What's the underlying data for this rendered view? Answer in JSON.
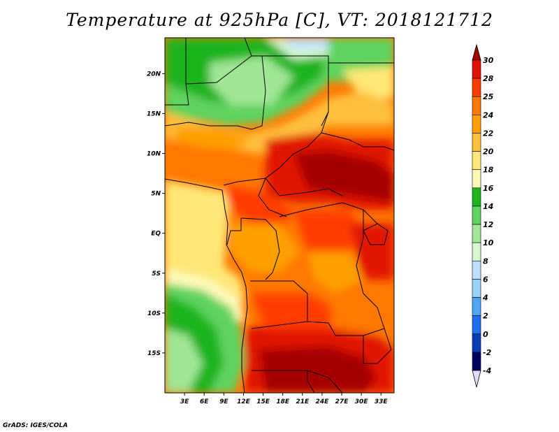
{
  "title": "Temperature at 925hPa [C], VT: 2018121712",
  "credit": "GrADS: IGES/COLA",
  "map": {
    "lat_labels": [
      "20N",
      "15N",
      "10N",
      "5N",
      "EQ",
      "5S",
      "10S",
      "15S"
    ],
    "lat_values": [
      20,
      15,
      10,
      5,
      0,
      -5,
      -10,
      -15
    ],
    "lon_labels": [
      "3E",
      "6E",
      "9E",
      "12E",
      "15E",
      "18E",
      "21E",
      "24E",
      "27E",
      "30E",
      "33E"
    ],
    "lon_values": [
      3,
      6,
      9,
      12,
      15,
      18,
      21,
      24,
      27,
      30,
      33
    ],
    "lat_range": [
      -20,
      24.5
    ],
    "lon_range": [
      0,
      35
    ]
  },
  "colorbar": {
    "labels": [
      "30",
      "28",
      "25",
      "24",
      "22",
      "20",
      "18",
      "16",
      "14",
      "12",
      "10",
      "8",
      "6",
      "4",
      "2",
      "0",
      "-2",
      "-4"
    ],
    "colors": [
      "#a50000",
      "#e11400",
      "#ff3c00",
      "#ff7800",
      "#ffa000",
      "#ffc03c",
      "#ffe878",
      "#fffabb",
      "#1eb41e",
      "#5fd35f",
      "#a0e696",
      "#d8f8d0",
      "#bde0ff",
      "#96d2fa",
      "#50a5f5",
      "#1e6ef0",
      "#0a3cb4",
      "#000064",
      "#e0dcff"
    ]
  }
}
